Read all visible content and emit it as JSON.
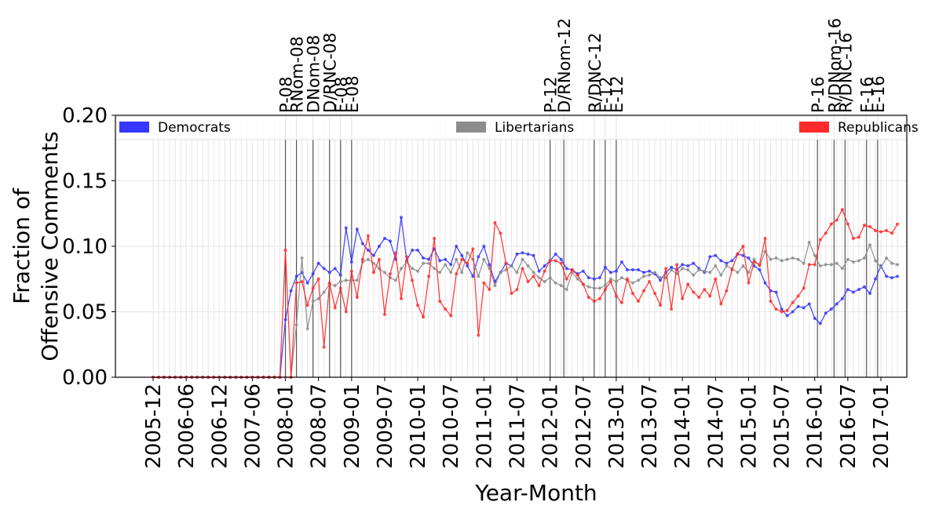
{
  "chart_data": {
    "type": "line",
    "xlabel": "Year-Month",
    "ylabel": "Fraction of\nOffensive Comments",
    "categories": [
      "2005-12",
      null,
      null,
      null,
      null,
      null,
      "2006-06",
      null,
      null,
      null,
      null,
      null,
      "2006-12",
      null,
      null,
      null,
      null,
      null,
      "2007-06",
      null,
      null,
      null,
      null,
      null,
      "2008-01",
      null,
      null,
      null,
      null,
      null,
      "2008-07",
      null,
      null,
      null,
      null,
      null,
      "2009-01",
      null,
      null,
      null,
      null,
      null,
      "2009-07",
      null,
      null,
      null,
      null,
      null,
      "2010-01",
      null,
      null,
      null,
      null,
      null,
      "2010-07",
      null,
      null,
      null,
      null,
      null,
      "2011-01",
      null,
      null,
      null,
      null,
      null,
      "2011-07",
      null,
      null,
      null,
      null,
      null,
      "2012-01",
      null,
      null,
      null,
      null,
      null,
      "2012-07",
      null,
      null,
      null,
      null,
      null,
      "2013-01",
      null,
      null,
      null,
      null,
      null,
      "2013-07",
      null,
      null,
      null,
      null,
      null,
      "2014-01",
      null,
      null,
      null,
      null,
      null,
      "2014-07",
      null,
      null,
      null,
      null,
      null,
      "2015-01",
      null,
      null,
      null,
      null,
      null,
      "2015-07",
      null,
      null,
      null,
      null,
      null,
      "2016-01",
      null,
      null,
      null,
      null,
      null,
      "2016-07",
      null,
      null,
      null,
      null,
      null,
      "2017-01",
      null,
      null,
      null
    ],
    "series": [
      {
        "name": "Democrats",
        "color": "#3636ff",
        "values": [
          0,
          0,
          0,
          0,
          0,
          0,
          0,
          0,
          0,
          0,
          0,
          0,
          0,
          0,
          0,
          0,
          0,
          0,
          0,
          0,
          0,
          0,
          0,
          0,
          0.044,
          0.066,
          0.077,
          0.08,
          0.072,
          0.079,
          0.087,
          0.083,
          0.08,
          0.083,
          0.078,
          0.114,
          0.088,
          0.113,
          0.102,
          0.097,
          0.093,
          0.1,
          0.106,
          0.104,
          0.09,
          0.122,
          0.089,
          0.097,
          0.097,
          0.091,
          0.09,
          0.098,
          0.089,
          0.09,
          0.086,
          0.1,
          0.093,
          0.085,
          0.077,
          0.092,
          0.1,
          0.086,
          0.073,
          0.08,
          0.087,
          0.085,
          0.094,
          0.095,
          0.094,
          0.093,
          0.081,
          0.085,
          0.089,
          0.094,
          0.09,
          0.083,
          0.082,
          0.079,
          0.081,
          0.076,
          0.075,
          0.076,
          0.084,
          0.08,
          0.081,
          0.088,
          0.082,
          0.082,
          0.082,
          0.08,
          0.081,
          0.079,
          0.074,
          0.08,
          0.084,
          0.082,
          0.086,
          0.085,
          0.087,
          0.083,
          0.08,
          0.092,
          0.093,
          0.089,
          0.087,
          0.089,
          0.094,
          0.093,
          0.091,
          0.085,
          0.082,
          0.072,
          0.066,
          0.065,
          0.052,
          0.047,
          0.05,
          0.054,
          0.053,
          0.056,
          0.045,
          0.041,
          0.049,
          0.052,
          0.056,
          0.06,
          0.067,
          0.065,
          0.067,
          0.069,
          0.064,
          0.075,
          0.085,
          0.077,
          0.076,
          0.077
        ]
      },
      {
        "name": "Libertarians",
        "color": "#8c8c8c",
        "values": [
          0,
          0,
          0,
          0,
          0,
          0,
          0,
          0,
          0,
          0,
          0,
          0,
          0,
          0,
          0,
          0,
          0,
          0,
          0,
          0,
          0,
          0,
          0,
          0,
          0,
          0,
          0.04,
          0.091,
          0.037,
          0.058,
          0.06,
          0.065,
          0.071,
          0.07,
          0.073,
          0.074,
          0.074,
          0.074,
          0.088,
          0.09,
          0.087,
          0.083,
          0.08,
          0.076,
          0.074,
          0.083,
          0.088,
          0.083,
          0.081,
          0.087,
          0.087,
          0.083,
          0.08,
          0.086,
          0.08,
          0.09,
          0.08,
          0.095,
          0.09,
          0.077,
          0.09,
          0.083,
          0.07,
          0.08,
          0.082,
          0.085,
          0.08,
          0.09,
          0.085,
          0.08,
          0.076,
          0.073,
          0.076,
          0.072,
          0.07,
          0.067,
          0.08,
          0.075,
          0.071,
          0.069,
          0.068,
          0.068,
          0.07,
          0.075,
          0.073,
          0.076,
          0.074,
          0.072,
          0.074,
          0.077,
          0.078,
          0.08,
          0.076,
          0.076,
          0.082,
          0.079,
          0.083,
          0.082,
          0.078,
          0.082,
          0.081,
          0.08,
          0.085,
          0.078,
          0.085,
          0.083,
          0.08,
          0.085,
          0.08,
          0.09,
          0.085,
          0.096,
          0.09,
          0.091,
          0.089,
          0.09,
          0.091,
          0.09,
          0.087,
          0.103,
          0.093,
          0.085,
          0.086,
          0.086,
          0.087,
          0.083,
          0.09,
          0.088,
          0.089,
          0.091,
          0.101,
          0.089,
          0.084,
          0.091,
          0.087,
          0.086
        ]
      },
      {
        "name": "Republicans",
        "color": "#ff2a2a",
        "values": [
          0,
          0,
          0,
          0,
          0,
          0,
          0,
          0,
          0,
          0,
          0,
          0,
          0,
          0,
          0,
          0,
          0,
          0,
          0,
          0,
          0,
          0,
          0,
          0,
          0.097,
          0,
          0.072,
          0.073,
          0.055,
          0.068,
          0.075,
          0.023,
          0.072,
          0.053,
          0.068,
          0.05,
          0.081,
          0.061,
          0.09,
          0.108,
          0.08,
          0.09,
          0.048,
          0.079,
          0.095,
          0.06,
          0.092,
          0.074,
          0.055,
          0.046,
          0.077,
          0.106,
          0.058,
          0.052,
          0.047,
          0.079,
          0.09,
          0.087,
          0.098,
          0.032,
          0.072,
          0.067,
          0.118,
          0.11,
          0.087,
          0.064,
          0.067,
          0.083,
          0.073,
          0.077,
          0.07,
          0.081,
          0.089,
          0.089,
          0.087,
          0.075,
          0.082,
          0.078,
          0.071,
          0.061,
          0.058,
          0.06,
          0.067,
          0.073,
          0.062,
          0.057,
          0.075,
          0.064,
          0.058,
          0.066,
          0.073,
          0.064,
          0.055,
          0.083,
          0.052,
          0.086,
          0.06,
          0.071,
          0.065,
          0.061,
          0.067,
          0.062,
          0.075,
          0.056,
          0.066,
          0.082,
          0.094,
          0.1,
          0.072,
          0.088,
          0.086,
          0.106,
          0.058,
          0.052,
          0.05,
          0.051,
          0.057,
          0.062,
          0.068,
          0.086,
          0.086,
          0.105,
          0.11,
          0.117,
          0.12,
          0.128,
          0.117,
          0.106,
          0.107,
          0.116,
          0.115,
          0.112,
          0.111,
          0.112,
          0.11,
          0.117
        ]
      }
    ],
    "events": [
      {
        "label": "P-08",
        "x": 24
      },
      {
        "label": "RNom-08",
        "x": 26
      },
      {
        "label": "DNom-08",
        "x": 29
      },
      {
        "label": "D/RNC-08",
        "x": 32
      },
      {
        "label": "F-08",
        "x": 34
      },
      {
        "label": "E-08",
        "x": 36
      },
      {
        "label": "P-12",
        "x": 72
      },
      {
        "label": "D/RNom-12",
        "x": 74.5
      },
      {
        "label": "R/DNC-12",
        "x": 80
      },
      {
        "label": "F-12",
        "x": 82
      },
      {
        "label": "E-12",
        "x": 84
      },
      {
        "label": "P-16",
        "x": 120.5
      },
      {
        "label": "R/DNom-16",
        "x": 123.5
      },
      {
        "label": "R/DNC-16",
        "x": 125.5
      },
      {
        "label": "F-16",
        "x": 129.4
      },
      {
        "label": "E-16",
        "x": 131.4
      }
    ],
    "ylim": [
      0,
      0.2
    ],
    "yticks": [
      {
        "value": 0,
        "label": "0.00"
      },
      {
        "value": 0.05,
        "label": "0.05"
      },
      {
        "value": 0.1,
        "label": "0.10"
      },
      {
        "value": 0.15,
        "label": "0.15"
      },
      {
        "value": 0.2,
        "label": "0.20"
      }
    ],
    "grid": true,
    "legend": "top"
  }
}
